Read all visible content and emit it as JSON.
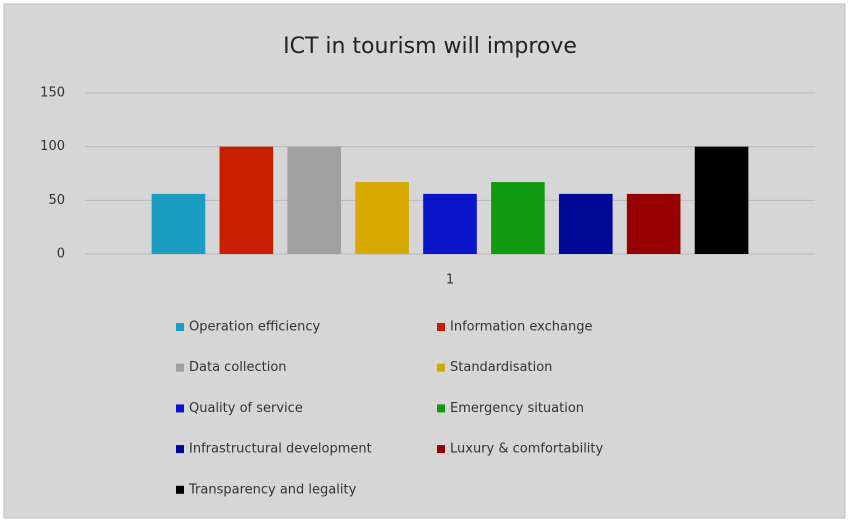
{
  "chart_data": {
    "type": "bar",
    "title": "ICT in tourism will improve",
    "categories": [
      "1"
    ],
    "series": [
      {
        "name": "Operation efficiency",
        "color": "#1b9dc1",
        "values": [
          56
        ]
      },
      {
        "name": "Information exchange",
        "color": "#c81e00",
        "values": [
          100
        ]
      },
      {
        "name": "Data collection",
        "color": "#a0a0a0",
        "values": [
          100
        ]
      },
      {
        "name": "Standardisation",
        "color": "#d6a800",
        "values": [
          67
        ]
      },
      {
        "name": "Quality of service",
        "color": "#0a14c8",
        "values": [
          56
        ]
      },
      {
        "name": "Emergency situation",
        "color": "#109a10",
        "values": [
          67
        ]
      },
      {
        "name": "Infrastructural development",
        "color": "#000a96",
        "values": [
          56
        ]
      },
      {
        "name": "Luxury & comfortability",
        "color": "#960000",
        "values": [
          56
        ]
      },
      {
        "name": "Transparency and legality",
        "color": "#000000",
        "values": [
          100
        ]
      }
    ],
    "ylim": [
      0,
      150
    ],
    "yticks": [
      0,
      50,
      100,
      150
    ],
    "grid": true
  }
}
